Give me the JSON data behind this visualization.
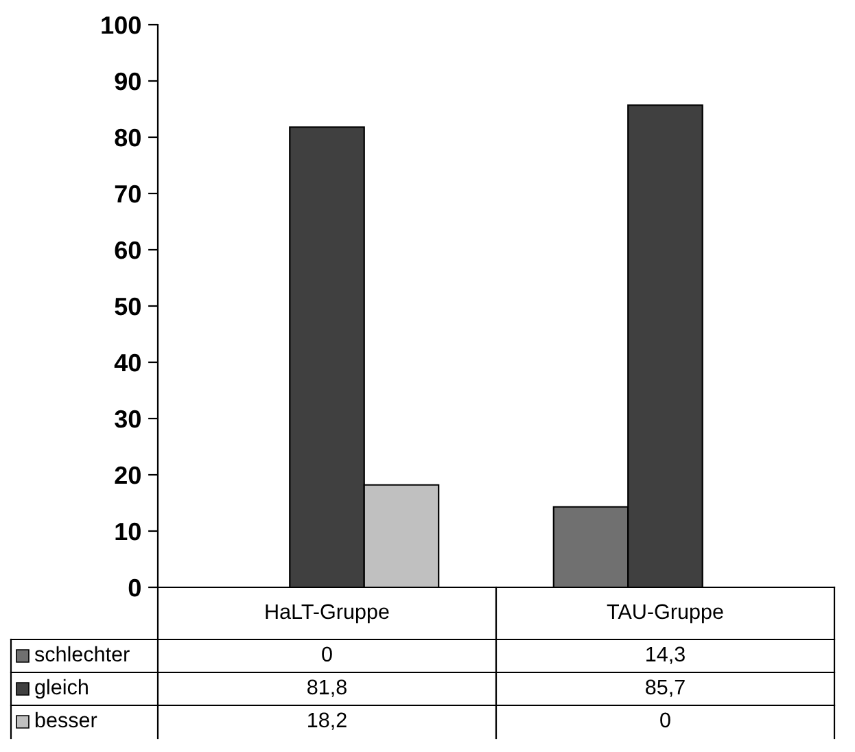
{
  "chart_data": {
    "type": "bar",
    "categories": [
      "HaLT-Gruppe",
      "TAU-Gruppe"
    ],
    "series": [
      {
        "name": "schlechter",
        "color": "#707070",
        "values": [
          0,
          14.3
        ],
        "value_labels": [
          "0",
          "14,3"
        ]
      },
      {
        "name": "gleich",
        "color": "#404040",
        "values": [
          81.8,
          85.7
        ],
        "value_labels": [
          "81,8",
          "85,7"
        ]
      },
      {
        "name": "besser",
        "color": "#c0c0c0",
        "values": [
          18.2,
          0
        ],
        "value_labels": [
          "18,2",
          "0"
        ]
      }
    ],
    "ylim": [
      0,
      100
    ],
    "yticks": [
      0,
      10,
      20,
      30,
      40,
      50,
      60,
      70,
      80,
      90,
      100
    ],
    "grid": false,
    "legend": "bottom left"
  }
}
